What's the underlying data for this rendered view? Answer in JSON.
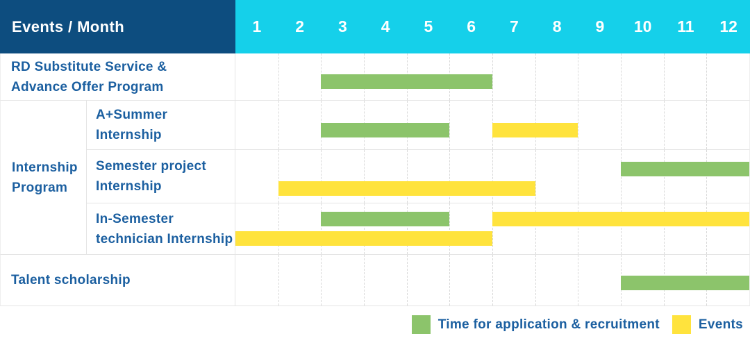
{
  "header": {
    "label": "Events / Month"
  },
  "colors": {
    "header_bg": "#0D4D7F",
    "months_bg": "#15D0EA",
    "header_text": "#FFFFFF",
    "label_text": "#1B5FA0",
    "application": "#8CC46B",
    "event": "#FFE33D",
    "grid": "#E4E4E4"
  },
  "chart_data": {
    "type": "bar",
    "subtype": "gantt-timeline",
    "orientation": "horizontal",
    "title": "Events / Month",
    "x": {
      "label": "Month",
      "ticks": [
        "1",
        "2",
        "3",
        "4",
        "5",
        "6",
        "7",
        "8",
        "9",
        "10",
        "11",
        "12"
      ],
      "min": 1,
      "max": 12
    },
    "grid": true,
    "legend_position": "bottom-right",
    "legend": [
      {
        "series": "application",
        "label": "Time for application & recruitment",
        "color": "#8CC46B"
      },
      {
        "series": "event",
        "label": "Events",
        "color": "#FFE33D"
      }
    ],
    "group_label": "Internship Program",
    "group_label_lines": [
      "Internship",
      "Program"
    ],
    "rows": [
      {
        "id": "rd-substitute-advance-offer",
        "label": "RD Substitute Service & Advance Offer Program",
        "label_lines": [
          "RD Substitute Service &",
          "Advance Offer Program"
        ],
        "group": null,
        "lines": [
          [
            {
              "series": "application",
              "start_month": 3,
              "end_month": 6
            }
          ]
        ]
      },
      {
        "id": "a-plus-summer-internship",
        "label": "A+Summer Internship",
        "label_lines": [
          "A+Summer",
          "Internship"
        ],
        "group": "Internship Program",
        "lines": [
          [
            {
              "series": "application",
              "start_month": 3,
              "end_month": 5
            },
            {
              "series": "event",
              "start_month": 7,
              "end_month": 8
            }
          ]
        ]
      },
      {
        "id": "semester-project-internship",
        "label": "Semester project Internship",
        "label_lines": [
          "Semester project",
          "Internship"
        ],
        "group": "Internship Program",
        "lines": [
          [
            {
              "series": "application",
              "start_month": 10,
              "end_month": 12
            }
          ],
          [
            {
              "series": "event",
              "start_month": 2,
              "end_month": 7
            }
          ]
        ]
      },
      {
        "id": "in-semester-technician-internship",
        "label": "In-Semester technician Internship",
        "label_lines": [
          "In-Semester",
          "technician Internship"
        ],
        "group": "Internship Program",
        "lines": [
          [
            {
              "series": "application",
              "start_month": 3,
              "end_month": 5
            },
            {
              "series": "event",
              "start_month": 7,
              "end_month": 12
            }
          ],
          [
            {
              "series": "event",
              "start_month": 1,
              "end_month": 6
            }
          ]
        ]
      },
      {
        "id": "talent-scholarship",
        "label": "Talent scholarship",
        "label_lines": [
          "Talent scholarship"
        ],
        "group": null,
        "lines": [
          [
            {
              "series": "application",
              "start_month": 10,
              "end_month": 12
            }
          ]
        ]
      }
    ]
  }
}
